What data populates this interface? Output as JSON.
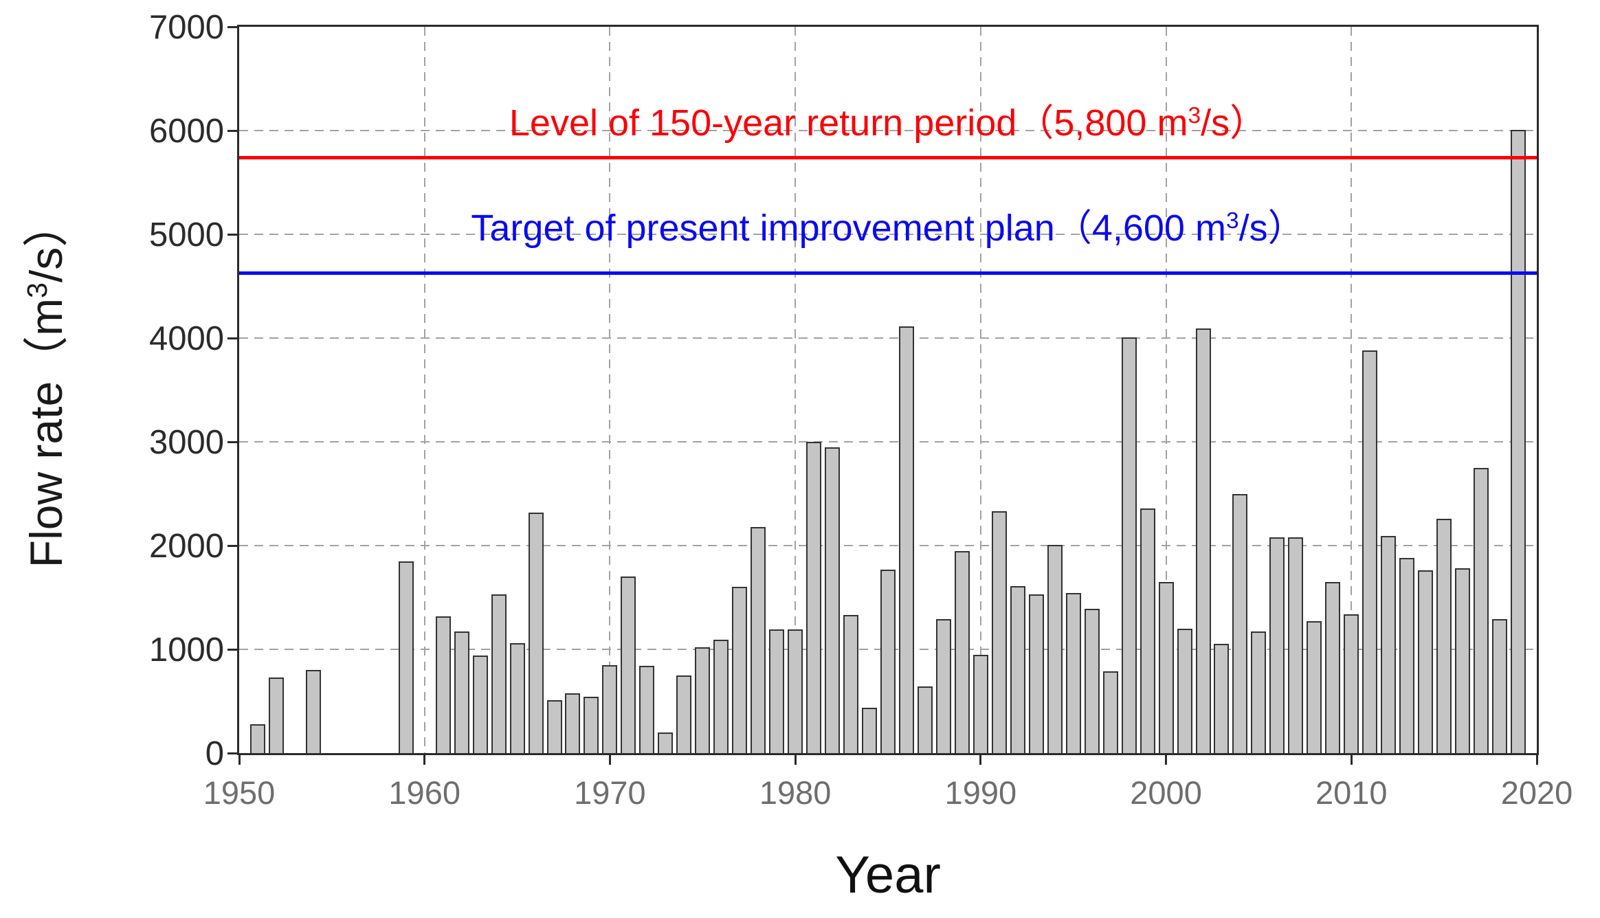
{
  "chart_data": {
    "type": "bar",
    "xlabel": "Year",
    "ylabel": "Flow rate（m³/s）",
    "xlim": [
      1950,
      2020
    ],
    "ylim": [
      0,
      7000
    ],
    "x_ticks": [
      1950,
      1960,
      1970,
      1980,
      1990,
      2000,
      2010,
      2020
    ],
    "y_ticks": [
      0,
      1000,
      2000,
      3000,
      4000,
      5000,
      6000,
      7000
    ],
    "grid": {
      "style": "dashed",
      "color": "#a2a2a2",
      "horizontal_lines": [
        1000,
        2000,
        3000,
        4000,
        5000,
        6000
      ],
      "vertical_lines": [
        1960,
        1970,
        1980,
        1990,
        2000,
        2010
      ]
    },
    "bar_style": {
      "fill": "#c5c5c5",
      "border": "#333333"
    },
    "missing_years": [
      1950,
      1953,
      1955,
      1956,
      1957,
      1958,
      1960
    ],
    "points": [
      {
        "year": 1951,
        "value": 280
      },
      {
        "year": 1952,
        "value": 730
      },
      {
        "year": 1954,
        "value": 800
      },
      {
        "year": 1959,
        "value": 1845
      },
      {
        "year": 1961,
        "value": 1320
      },
      {
        "year": 1962,
        "value": 1170
      },
      {
        "year": 1963,
        "value": 940
      },
      {
        "year": 1964,
        "value": 1530
      },
      {
        "year": 1965,
        "value": 1060
      },
      {
        "year": 1966,
        "value": 2320
      },
      {
        "year": 1967,
        "value": 510
      },
      {
        "year": 1968,
        "value": 575
      },
      {
        "year": 1969,
        "value": 545
      },
      {
        "year": 1970,
        "value": 850
      },
      {
        "year": 1971,
        "value": 1700
      },
      {
        "year": 1972,
        "value": 840
      },
      {
        "year": 1973,
        "value": 200
      },
      {
        "year": 1974,
        "value": 750
      },
      {
        "year": 1975,
        "value": 1020
      },
      {
        "year": 1976,
        "value": 1090
      },
      {
        "year": 1977,
        "value": 1600
      },
      {
        "year": 1978,
        "value": 2180
      },
      {
        "year": 1979,
        "value": 1190
      },
      {
        "year": 1980,
        "value": 1190
      },
      {
        "year": 1981,
        "value": 3000
      },
      {
        "year": 1982,
        "value": 2950
      },
      {
        "year": 1983,
        "value": 1330
      },
      {
        "year": 1984,
        "value": 440
      },
      {
        "year": 1985,
        "value": 1770
      },
      {
        "year": 1986,
        "value": 4110
      },
      {
        "year": 1987,
        "value": 640
      },
      {
        "year": 1988,
        "value": 1290
      },
      {
        "year": 1989,
        "value": 1950
      },
      {
        "year": 1990,
        "value": 950
      },
      {
        "year": 1991,
        "value": 2330
      },
      {
        "year": 1992,
        "value": 1610
      },
      {
        "year": 1993,
        "value": 1530
      },
      {
        "year": 1994,
        "value": 2010
      },
      {
        "year": 1995,
        "value": 1540
      },
      {
        "year": 1996,
        "value": 1390
      },
      {
        "year": 1997,
        "value": 790
      },
      {
        "year": 1998,
        "value": 4010
      },
      {
        "year": 1999,
        "value": 2360
      },
      {
        "year": 2000,
        "value": 1650
      },
      {
        "year": 2001,
        "value": 1200
      },
      {
        "year": 2002,
        "value": 4090
      },
      {
        "year": 2003,
        "value": 1050
      },
      {
        "year": 2004,
        "value": 2500
      },
      {
        "year": 2005,
        "value": 1170
      },
      {
        "year": 2006,
        "value": 2080
      },
      {
        "year": 2007,
        "value": 2080
      },
      {
        "year": 2008,
        "value": 1270
      },
      {
        "year": 2009,
        "value": 1650
      },
      {
        "year": 2010,
        "value": 1340
      },
      {
        "year": 2011,
        "value": 3880
      },
      {
        "year": 2012,
        "value": 2090
      },
      {
        "year": 2013,
        "value": 1880
      },
      {
        "year": 2014,
        "value": 1760
      },
      {
        "year": 2015,
        "value": 2260
      },
      {
        "year": 2016,
        "value": 1780
      },
      {
        "year": 2017,
        "value": 2750
      },
      {
        "year": 2018,
        "value": 1290
      },
      {
        "year": 2019,
        "value": 6010
      }
    ],
    "reference_lines": [
      {
        "id": "return-period-150yr",
        "label": "Level of 150-year return period（5,800 m³/s）",
        "value": 5800,
        "drawn_value": 5740,
        "color": "#fb0006"
      },
      {
        "id": "improvement-plan-target",
        "label": "Target of present improvement plan（4,600 m³/s）",
        "value": 4600,
        "drawn_value": 4630,
        "color": "#0b0bef"
      }
    ],
    "legend": "none"
  }
}
